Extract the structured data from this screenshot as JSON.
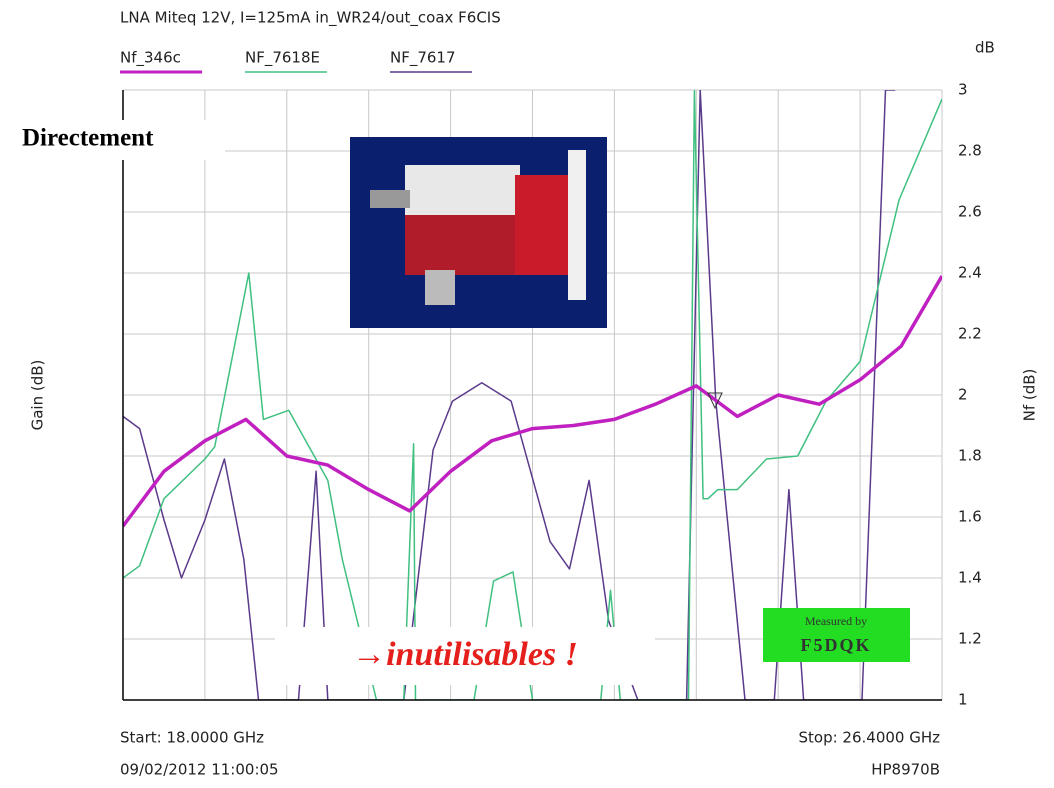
{
  "chart_data": {
    "type": "line",
    "title": "LNA Miteq 12V, I=125mA in_WR24/out_coax  F6CIS",
    "y_unit_label": "dB",
    "left_axis_label": "Gain (dB)",
    "right_axis_label": "Nf (dB)",
    "start_label": "Start: 18.0000 GHz",
    "stop_label": "Stop: 26.4000 GHz",
    "timestamp": "09/02/2012 11:00:05",
    "instrument": "HP8970B",
    "annotations": [
      "Directement",
      "→inutilisables !"
    ],
    "stamp": [
      "Measured by",
      "F5DQK"
    ],
    "xlim": [
      18,
      26.4
    ],
    "x_grid_divisions": 10,
    "ylim": [
      1,
      3
    ],
    "yticks": [
      1,
      1.2,
      1.4,
      1.6,
      1.8,
      2,
      2.2,
      2.4,
      2.6,
      2.8,
      3
    ],
    "grid": true,
    "series": [
      {
        "name": "Nf_346c",
        "color": "#c020c0",
        "width": 3.5,
        "x": [
          18.0,
          18.42,
          18.84,
          19.26,
          19.68,
          20.1,
          20.52,
          20.94,
          21.36,
          21.78,
          22.2,
          22.62,
          23.04,
          23.46,
          23.88,
          24.3,
          24.72,
          25.14,
          25.56,
          25.98,
          26.4
        ],
        "values": [
          1.57,
          1.75,
          1.85,
          1.92,
          1.8,
          1.77,
          1.69,
          1.62,
          1.75,
          1.85,
          1.89,
          1.9,
          1.92,
          1.97,
          2.03,
          1.93,
          2.0,
          1.97,
          2.05,
          2.16,
          2.39
        ]
      },
      {
        "name": "NF_7618E",
        "color": "#40c080",
        "width": 1.5,
        "x": [
          18.0,
          18.17,
          18.42,
          18.84,
          18.94,
          19.29,
          19.44,
          19.7,
          20.1,
          20.25,
          20.6,
          20.88,
          20.98,
          21.0,
          21.6,
          21.8,
          22.0,
          22.2,
          22.4,
          22.9,
          23.0,
          23.1,
          23.6,
          23.8,
          23.86,
          23.95,
          24.0,
          24.1,
          24.3,
          24.6,
          24.92,
          25.21,
          25.56,
          25.96,
          26.4
        ],
        "values": [
          1.4,
          1.44,
          1.66,
          1.79,
          1.83,
          2.4,
          1.92,
          1.95,
          1.72,
          1.46,
          1.0,
          1.0,
          1.84,
          1.0,
          1.0,
          1.39,
          1.42,
          1.0,
          1.0,
          1.0,
          1.36,
          1.0,
          1.0,
          1.0,
          3.0,
          1.66,
          1.66,
          1.69,
          1.69,
          1.79,
          1.8,
          1.98,
          2.11,
          2.64,
          2.97
        ]
      },
      {
        "name": "NF_7617",
        "color": "#5a3a8a",
        "width": 1.5,
        "x": [
          18.0,
          18.17,
          18.42,
          18.6,
          18.84,
          19.04,
          19.24,
          19.39,
          19.8,
          19.98,
          20.1,
          20.88,
          21.18,
          21.38,
          21.68,
          21.98,
          22.38,
          22.58,
          22.78,
          22.98,
          23.28,
          23.58,
          23.78,
          23.92,
          24.08,
          24.38,
          24.68,
          24.83,
          24.98,
          25.58,
          25.82,
          25.92
        ],
        "values": [
          1.93,
          1.89,
          1.59,
          1.4,
          1.59,
          1.79,
          1.46,
          1.0,
          1.0,
          1.75,
          1.0,
          1.0,
          1.82,
          1.98,
          2.04,
          1.98,
          1.52,
          1.43,
          1.72,
          1.26,
          1.0,
          1.0,
          1.0,
          3.0,
          1.98,
          1.0,
          1.0,
          1.69,
          1.0,
          1.0,
          3.0,
          3.0
        ]
      }
    ]
  }
}
